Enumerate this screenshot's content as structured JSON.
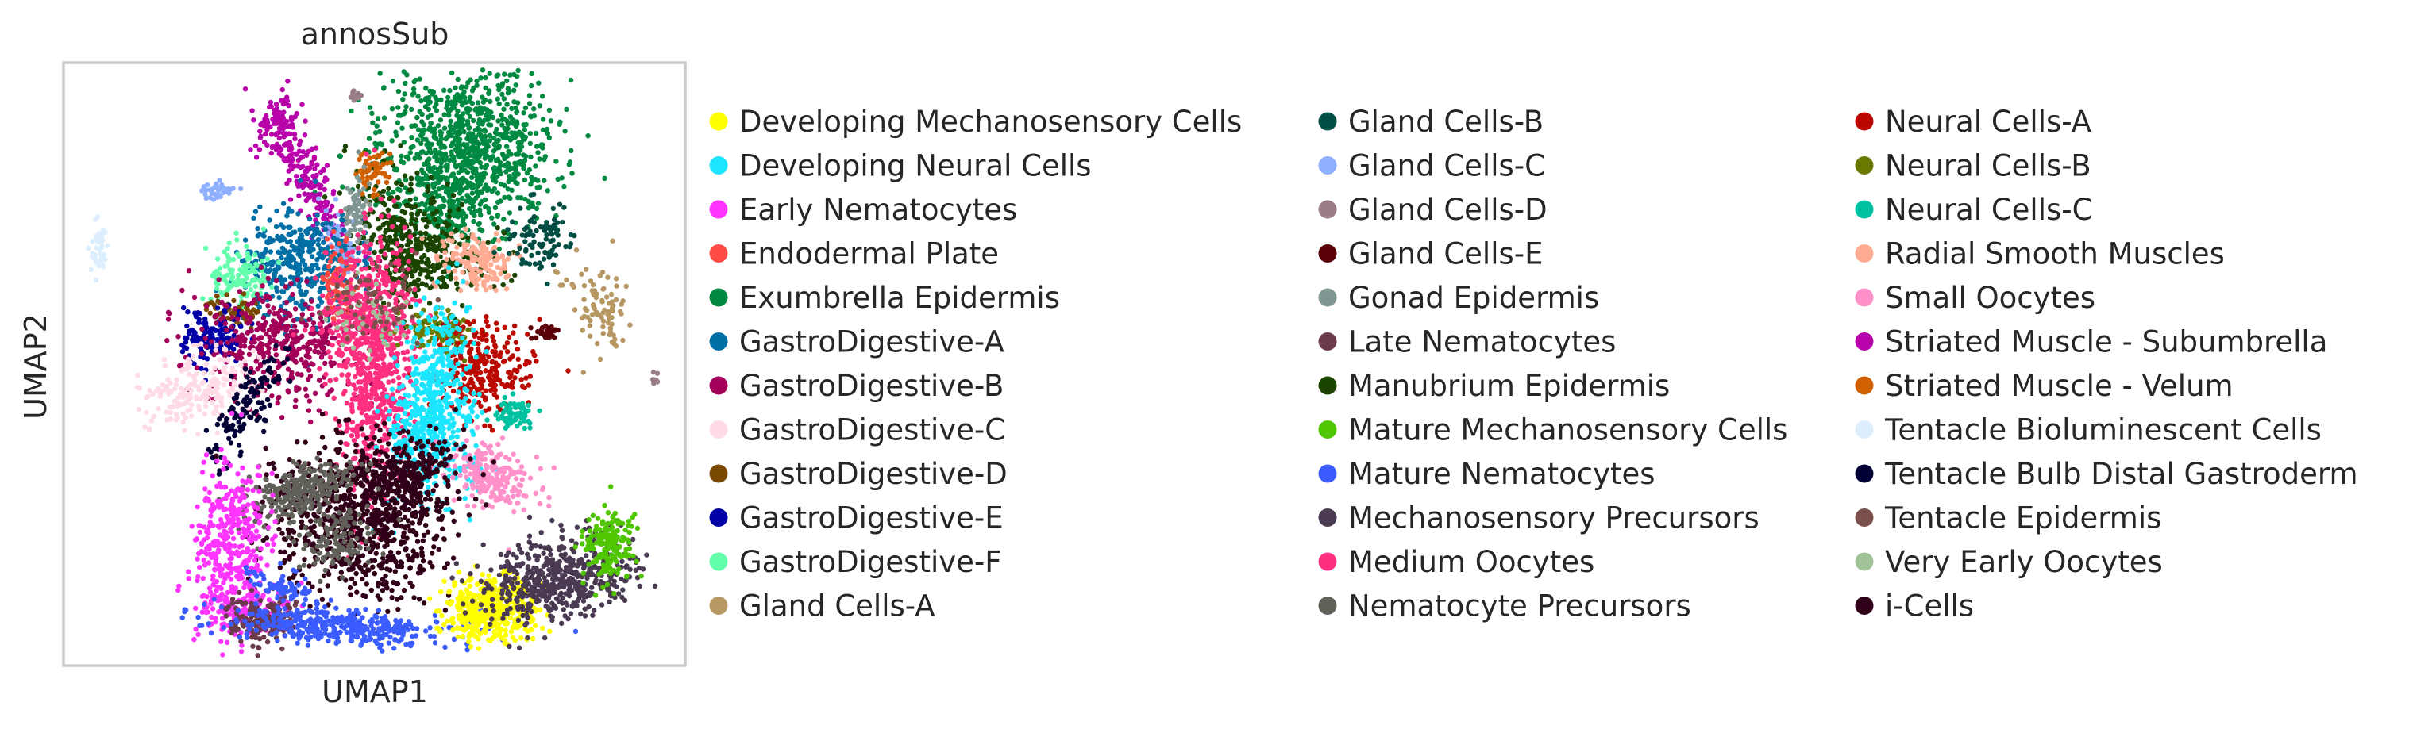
{
  "chart_data": {
    "type": "scatter",
    "title": "annosSub",
    "xlabel": "UMAP1",
    "ylabel": "UMAP2",
    "grid": false,
    "ticks": false,
    "legend_placement": "right",
    "legend": [
      {
        "label": "Developing Mechanosensory Cells",
        "color": "#ffff00"
      },
      {
        "label": "Developing Neural Cells",
        "color": "#1ce6ff"
      },
      {
        "label": "Early Nematocytes",
        "color": "#ff34ff"
      },
      {
        "label": "Endodermal Plate",
        "color": "#ff4a46"
      },
      {
        "label": "Exumbrella Epidermis",
        "color": "#008941"
      },
      {
        "label": "GastroDigestive-A",
        "color": "#006fa6"
      },
      {
        "label": "GastroDigestive-B",
        "color": "#a30059"
      },
      {
        "label": "GastroDigestive-C",
        "color": "#ffdbe5"
      },
      {
        "label": "GastroDigestive-D",
        "color": "#7a4900"
      },
      {
        "label": "GastroDigestive-E",
        "color": "#0000a6"
      },
      {
        "label": "GastroDigestive-F",
        "color": "#63ffac"
      },
      {
        "label": "Gland Cells-A",
        "color": "#b79762"
      },
      {
        "label": "Gland Cells-B",
        "color": "#004d43"
      },
      {
        "label": "Gland Cells-C",
        "color": "#8fb0ff"
      },
      {
        "label": "Gland Cells-D",
        "color": "#997d87"
      },
      {
        "label": "Gland Cells-E",
        "color": "#5a0007"
      },
      {
        "label": "Gonad Epidermis",
        "color": "#809693"
      },
      {
        "label": "Late Nematocytes",
        "color": "#6b3a4c"
      },
      {
        "label": "Manubrium Epidermis",
        "color": "#1b4400"
      },
      {
        "label": "Mature Mechanosensory Cells",
        "color": "#4fc601"
      },
      {
        "label": "Mature Nematocytes",
        "color": "#3b5dff"
      },
      {
        "label": "Mechanosensory Precursors",
        "color": "#4a3b53"
      },
      {
        "label": "Medium Oocytes",
        "color": "#ff2f80"
      },
      {
        "label": "Nematocyte Precursors",
        "color": "#61615a"
      },
      {
        "label": "Neural Cells-A",
        "color": "#ba0900"
      },
      {
        "label": "Neural Cells-B",
        "color": "#6b7900"
      },
      {
        "label": "Neural Cells-C",
        "color": "#00c2a0"
      },
      {
        "label": "Radial Smooth Muscles",
        "color": "#ffaa92"
      },
      {
        "label": "Small Oocytes",
        "color": "#ff90c9"
      },
      {
        "label": "Striated Muscle - Subumbrella",
        "color": "#b903aa"
      },
      {
        "label": "Striated Muscle - Velum",
        "color": "#d16100"
      },
      {
        "label": "Tentacle Bioluminescent Cells",
        "color": "#ddefff"
      },
      {
        "label": "Tentacle Bulb Distal Gastroderm",
        "color": "#000035"
      },
      {
        "label": "Tentacle Epidermis",
        "color": "#7b4f4b"
      },
      {
        "label": "Very Early Oocytes",
        "color": "#a1c299"
      },
      {
        "label": "i-Cells",
        "color": "#300018"
      }
    ]
  }
}
